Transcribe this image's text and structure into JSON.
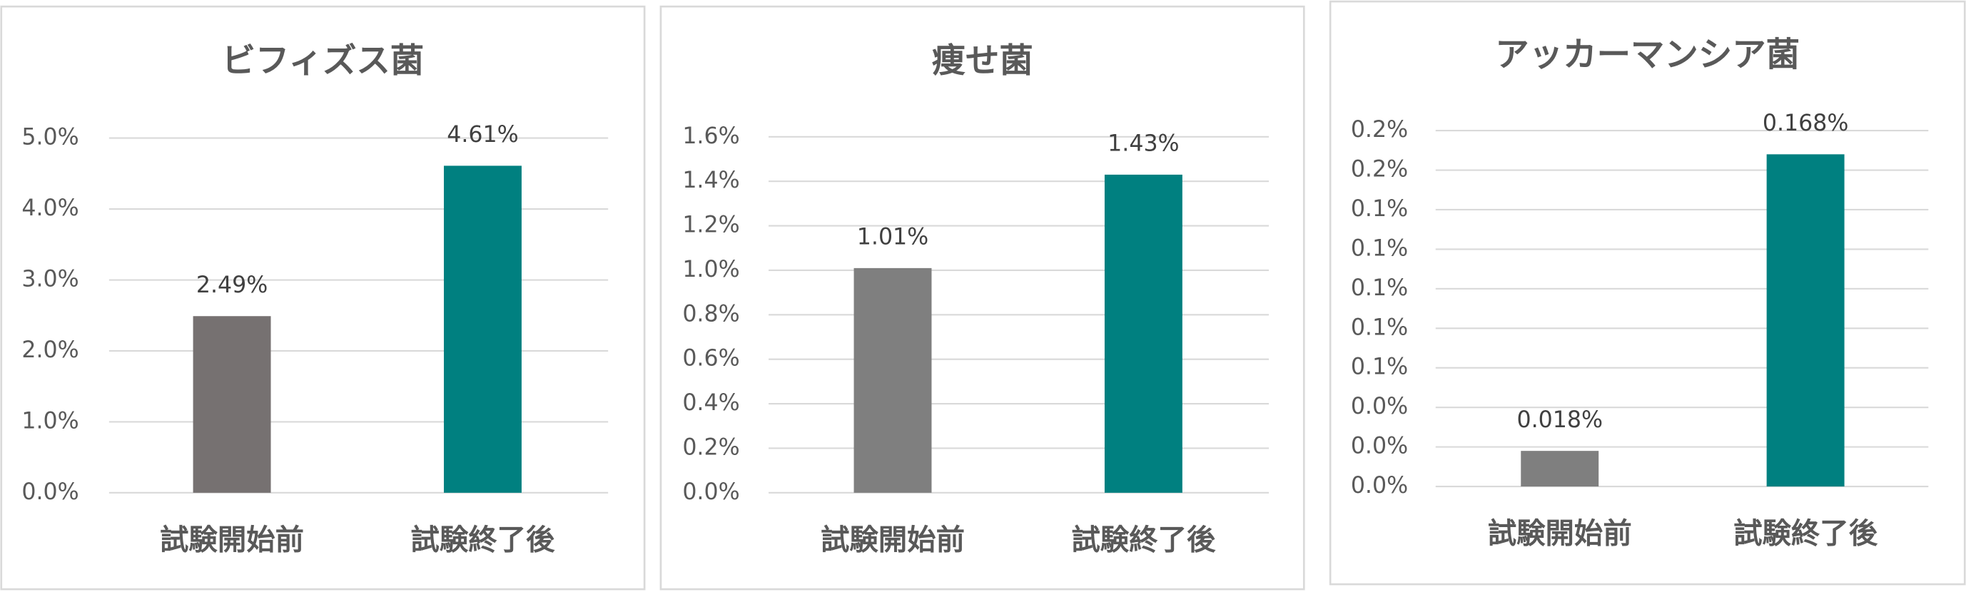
{
  "chart_data": [
    {
      "type": "bar",
      "title": "ビフィズス菌",
      "categories": [
        "試験開始前",
        "試験終了後"
      ],
      "values": [
        2.49,
        4.61
      ],
      "value_labels": [
        "2.49%",
        "4.61%"
      ],
      "colors": [
        "#767171",
        "#008080"
      ],
      "ylim": [
        0,
        5
      ],
      "yticks": [
        {
          "value": 0,
          "label": "0.0%"
        },
        {
          "value": 1,
          "label": "1.0%"
        },
        {
          "value": 2,
          "label": "2.0%"
        },
        {
          "value": 3,
          "label": "3.0%"
        },
        {
          "value": 4,
          "label": "4.0%"
        },
        {
          "value": 5,
          "label": "5.0%"
        }
      ],
      "grid": true
    },
    {
      "type": "bar",
      "title": "痩せ菌",
      "categories": [
        "試験開始前",
        "試験終了後"
      ],
      "values": [
        1.01,
        1.43
      ],
      "value_labels": [
        "1.01%",
        "1.43%"
      ],
      "colors": [
        "#7f7f7f",
        "#008080"
      ],
      "ylim": [
        0,
        1.6
      ],
      "yticks": [
        {
          "value": 0,
          "label": "0.0%"
        },
        {
          "value": 0.2,
          "label": "0.2%"
        },
        {
          "value": 0.4,
          "label": "0.4%"
        },
        {
          "value": 0.6,
          "label": "0.6%"
        },
        {
          "value": 0.8,
          "label": "0.8%"
        },
        {
          "value": 1.0,
          "label": "1.0%"
        },
        {
          "value": 1.2,
          "label": "1.2%"
        },
        {
          "value": 1.4,
          "label": "1.4%"
        },
        {
          "value": 1.6,
          "label": "1.6%"
        }
      ],
      "grid": true
    },
    {
      "type": "bar",
      "title": "アッカーマンシア菌",
      "categories": [
        "試験開始前",
        "試験終了後"
      ],
      "values": [
        0.018,
        0.168
      ],
      "value_labels": [
        "0.018%",
        "0.168%"
      ],
      "colors": [
        "#7f7f7f",
        "#008080"
      ],
      "ylim": [
        0,
        0.18
      ],
      "yticks": [
        {
          "value": 0,
          "label": "0.0%"
        },
        {
          "value": 0.02,
          "label": "0.0%"
        },
        {
          "value": 0.04,
          "label": "0.0%"
        },
        {
          "value": 0.06,
          "label": "0.1%"
        },
        {
          "value": 0.08,
          "label": "0.1%"
        },
        {
          "value": 0.1,
          "label": "0.1%"
        },
        {
          "value": 0.12,
          "label": "0.1%"
        },
        {
          "value": 0.14,
          "label": "0.1%"
        },
        {
          "value": 0.16,
          "label": "0.2%"
        },
        {
          "value": 0.18,
          "label": "0.2%"
        }
      ],
      "grid": true
    }
  ]
}
